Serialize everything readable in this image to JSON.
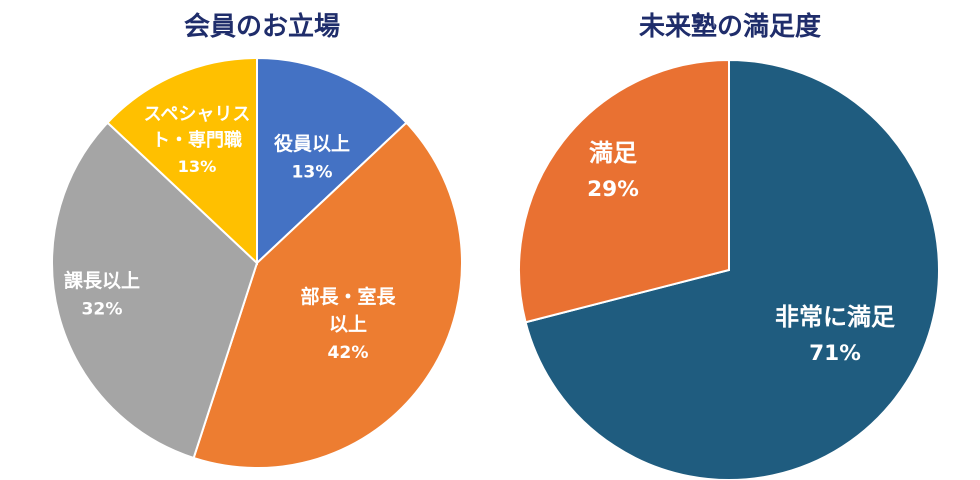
{
  "chart_data": [
    {
      "type": "pie",
      "title": "会員のお立場",
      "start_angle_deg": 0,
      "direction": "clockwise",
      "slices": [
        {
          "label_lines": [
            "役員以上"
          ],
          "value": 13,
          "value_text": "13%",
          "color": "#4472c4"
        },
        {
          "label_lines": [
            "部長・室長",
            "以上"
          ],
          "value": 42,
          "value_text": "42%",
          "color": "#ed7d31"
        },
        {
          "label_lines": [
            "課長以上"
          ],
          "value": 32,
          "value_text": "32%",
          "color": "#a5a5a5"
        },
        {
          "label_lines": [
            "スペシャリス",
            "ト・専門職"
          ],
          "value": 13,
          "value_text": "13%",
          "color": "#ffc000"
        }
      ]
    },
    {
      "type": "pie",
      "title": "未来塾の満足度",
      "start_angle_deg": 0,
      "direction": "clockwise",
      "slices": [
        {
          "label_lines": [
            "非常に満足"
          ],
          "value": 71,
          "value_text": "71%",
          "color": "#1f5c7f"
        },
        {
          "label_lines": [
            "満足"
          ],
          "value": 29,
          "value_text": "29%",
          "color": "#e97132"
        }
      ]
    }
  ]
}
